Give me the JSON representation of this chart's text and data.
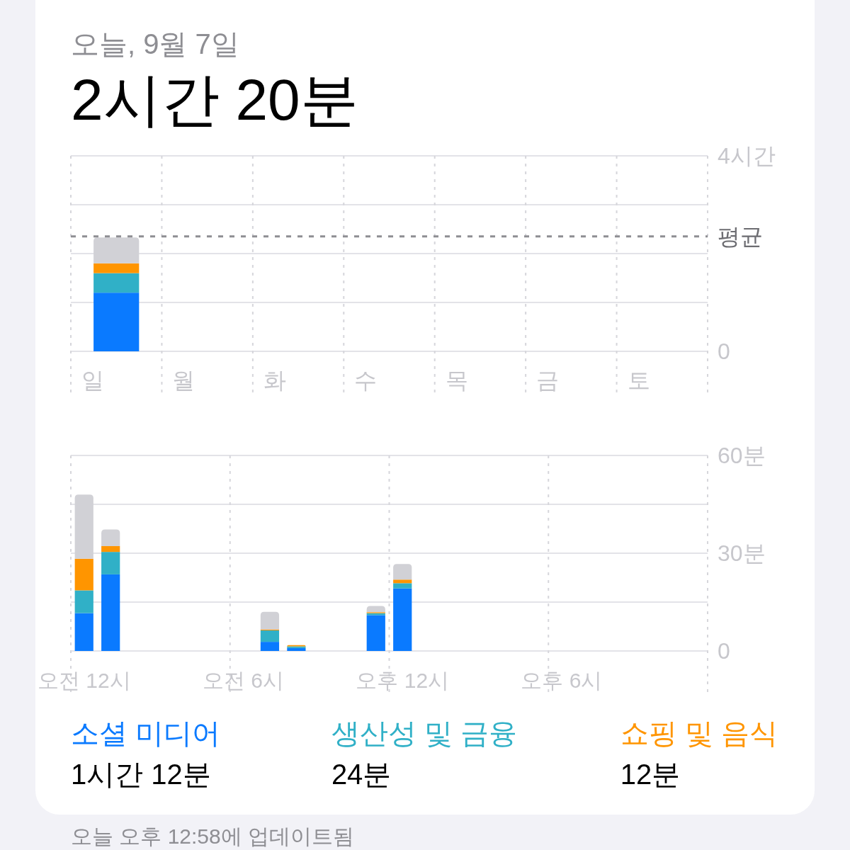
{
  "chart_data": [
    {
      "type": "bar",
      "subtitle": "오늘, 9월 7일",
      "title": "2시간 20분",
      "categories": [
        "일",
        "월",
        "화",
        "수",
        "목",
        "금",
        "토"
      ],
      "stacked": true,
      "series": [
        {
          "color": "#0a7aff",
          "values": [
            1.2,
            null,
            null,
            null,
            null,
            null,
            null
          ]
        },
        {
          "color": "#30b0c7",
          "values": [
            0.4,
            null,
            null,
            null,
            null,
            null,
            null
          ]
        },
        {
          "color": "#ff9500",
          "values": [
            0.2,
            null,
            null,
            null,
            null,
            null,
            null
          ]
        },
        {
          "color": "#d1d1d6",
          "values": [
            0.53,
            null,
            null,
            null,
            null,
            null,
            null
          ]
        }
      ],
      "ylim": [
        0,
        4
      ],
      "yticks": [
        0,
        {
          "value": 1,
          "label": null
        },
        {
          "value": 2,
          "label": null
        },
        {
          "value": 3,
          "label": null
        },
        {
          "value": 4,
          "label": "4시간"
        }
      ],
      "grid": true,
      "ref_lines": [
        {
          "axis": "y",
          "value": 2.35,
          "label": "평균",
          "color": "#8e8e93",
          "line_style": "dashed"
        }
      ]
    },
    {
      "type": "bar",
      "categories": [
        "오전 12시",
        null,
        null,
        null,
        null,
        null,
        "오전 6시",
        null,
        null,
        null,
        null,
        null,
        "오후 12시",
        null,
        null,
        null,
        null,
        null,
        "오후 6시",
        null,
        null,
        null,
        null,
        null
      ],
      "stacked": true,
      "series": [
        {
          "name": "소셜 미디어",
          "color": "#0a7aff",
          "values": [
            11.6,
            23.5,
            null,
            null,
            null,
            null,
            null,
            2.8,
            0.9,
            null,
            null,
            11.0,
            19.2,
            null,
            null,
            null,
            null,
            null,
            null,
            null,
            null,
            null,
            null,
            null
          ]
        },
        {
          "name": "생산성 및 금융",
          "color": "#30b0c7",
          "values": [
            7.0,
            6.9,
            null,
            null,
            null,
            null,
            null,
            3.5,
            0.5,
            null,
            null,
            0.6,
            1.6,
            null,
            null,
            null,
            null,
            null,
            null,
            null,
            null,
            null,
            null,
            null
          ]
        },
        {
          "name": "쇼핑 및 음식",
          "color": "#ff9500",
          "values": [
            9.7,
            1.8,
            null,
            null,
            null,
            null,
            null,
            0.3,
            0.4,
            null,
            null,
            0.3,
            1.1,
            null,
            null,
            null,
            null,
            null,
            null,
            null,
            null,
            null,
            null,
            null
          ]
        },
        {
          "color": "#d1d1d6",
          "values": [
            19.7,
            5.1,
            null,
            null,
            null,
            null,
            null,
            5.4,
            null,
            null,
            null,
            1.9,
            4.8,
            null,
            null,
            null,
            null,
            null,
            null,
            null,
            null,
            null,
            null,
            null
          ]
        }
      ],
      "ylim": [
        0,
        60
      ],
      "yticks": [
        0,
        {
          "value": 15,
          "label": null
        },
        {
          "value": 30,
          "label": "30분"
        },
        {
          "value": 45,
          "label": null
        },
        {
          "value": 60,
          "label": "60분"
        }
      ],
      "grid": true,
      "annotations": [
        "1시간 12분",
        "24분",
        "12분",
        "오늘 오후 12:58에 업데이트됨"
      ]
    }
  ]
}
